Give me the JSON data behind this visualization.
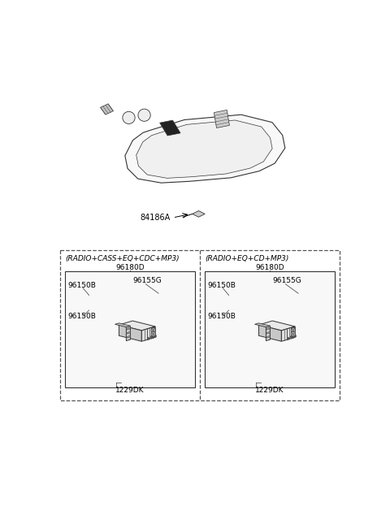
{
  "bg_color": "#ffffff",
  "line_color": "#333333",
  "dark_fill": "#1a1a1a",
  "mid_fill": "#888888",
  "light_fill": "#dddddd",
  "very_light": "#f0f0f0",
  "text_color": "#000000",
  "dash_color": "#777777",
  "small_fontsize": 6.5,
  "med_fontsize": 7.0,
  "dashboard_label": "84186A",
  "left_box_title": "(RADIO+CASS+EQ+CDC+MP3)",
  "right_box_title": "(RADIO+EQ+CD+MP3)",
  "left_part_top": "96180D",
  "right_part_top": "96180D",
  "left_labels": [
    "96150B",
    "96155G",
    "96150B",
    "1229DK"
  ],
  "right_labels": [
    "96150B",
    "96155G",
    "96150B",
    "1229DK"
  ]
}
